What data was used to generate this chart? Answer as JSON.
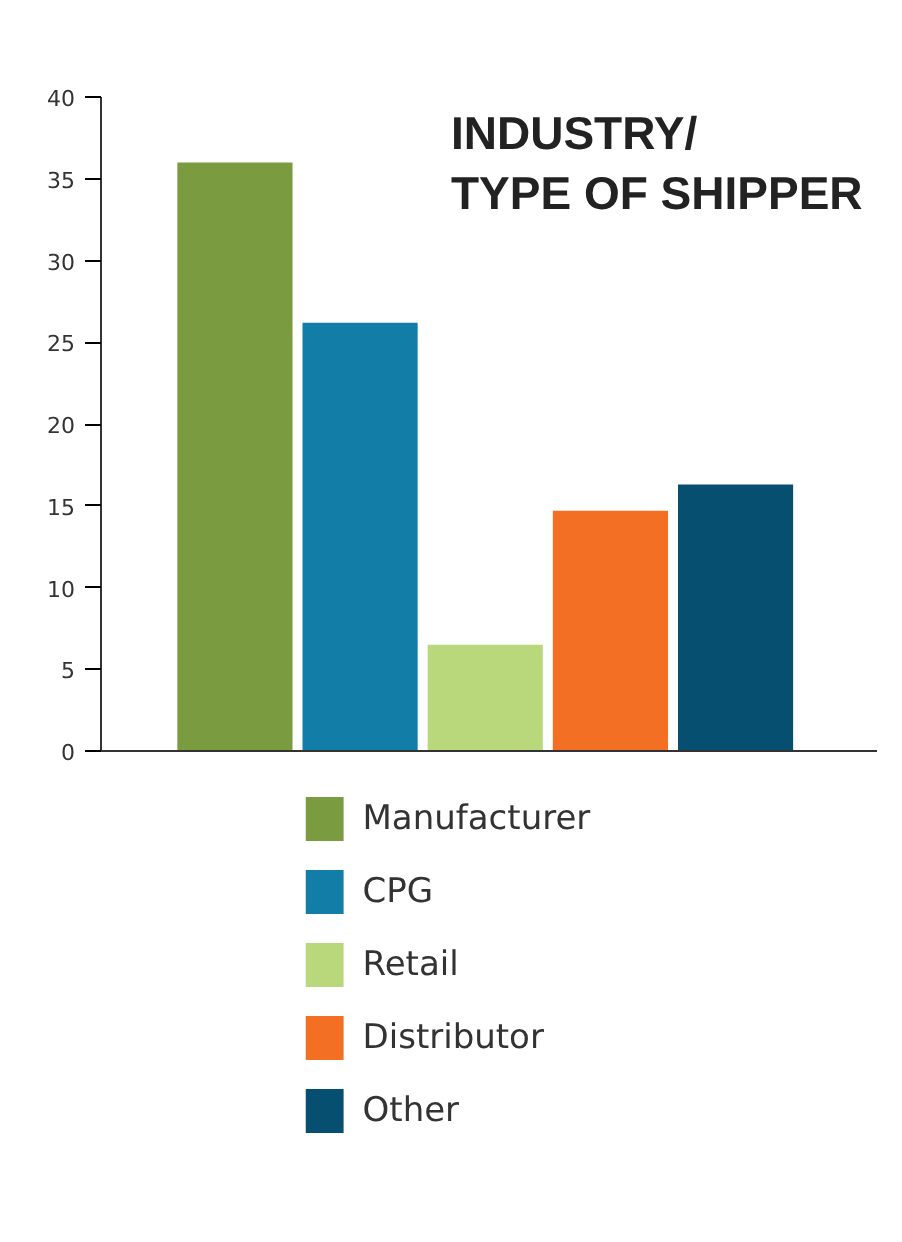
{
  "chart_data": {
    "type": "bar",
    "title": "INDUSTRY/\nTYPE OF SHIPPER",
    "categories": [
      null
    ],
    "series": [
      {
        "name": "Manufacturer",
        "color": "#7a9b3f",
        "values": [
          36
        ]
      },
      {
        "name": "CPG",
        "color": "#127ea8",
        "values": [
          26.2
        ]
      },
      {
        "name": "Retail",
        "color": "#b9d77b",
        "values": [
          6.5
        ]
      },
      {
        "name": "Distributor",
        "color": "#f26f23",
        "values": [
          14.7
        ]
      },
      {
        "name": "Other",
        "color": "#074f71",
        "values": [
          16.3
        ]
      }
    ],
    "ylim": [
      0,
      40
    ],
    "yticks": [
      0,
      5,
      10,
      15,
      20,
      25,
      30,
      35,
      40
    ],
    "grid": false,
    "legend": "bottom",
    "tick_labels": "y"
  }
}
